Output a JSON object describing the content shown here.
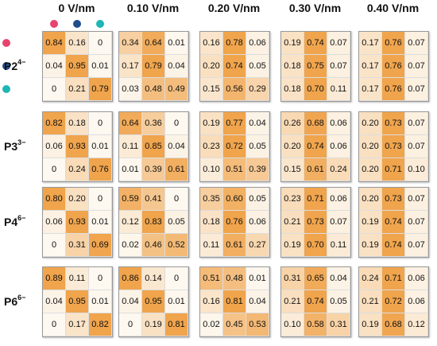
{
  "fields": [
    "0 V/nm",
    "0.10 V/nm",
    "0.20 V/nm",
    "0.30 V/nm",
    "0.40 V/nm"
  ],
  "rows": [
    {
      "label_base": "P2",
      "label_sup": "4−"
    },
    {
      "label_base": "P3",
      "label_sup": "3−"
    },
    {
      "label_base": "P4",
      "label_sup": "6−"
    },
    {
      "label_base": "P6",
      "label_sup": "6−"
    }
  ],
  "legend_dots": [
    {
      "name": "pink-dot",
      "color": "#e8436e"
    },
    {
      "name": "navy-dot",
      "color": "#1f4e8c"
    },
    {
      "name": "teal-dot",
      "color": "#1fb5b5"
    }
  ],
  "scale_colors": {
    "low": "#fdf8f0",
    "high": "#f0a44c"
  },
  "matrices": [
    [
      [
        [
          0.84,
          0.16,
          0
        ],
        [
          0.04,
          0.95,
          0.01
        ],
        [
          0,
          0.21,
          0.79
        ]
      ],
      [
        [
          0.34,
          0.64,
          0.01
        ],
        [
          0.17,
          0.79,
          0.04
        ],
        [
          0.03,
          0.48,
          0.49
        ]
      ],
      [
        [
          0.16,
          0.78,
          0.06
        ],
        [
          0.2,
          0.74,
          0.05
        ],
        [
          0.15,
          0.56,
          0.29
        ]
      ],
      [
        [
          0.19,
          0.74,
          0.07
        ],
        [
          0.18,
          0.75,
          0.07
        ],
        [
          0.18,
          0.7,
          0.11
        ]
      ],
      [
        [
          0.17,
          0.76,
          0.07
        ],
        [
          0.17,
          0.76,
          0.07
        ],
        [
          0.17,
          0.76,
          0.07
        ]
      ]
    ],
    [
      [
        [
          0.82,
          0.18,
          0
        ],
        [
          0.06,
          0.93,
          0.01
        ],
        [
          0,
          0.24,
          0.76
        ]
      ],
      [
        [
          0.64,
          0.36,
          0
        ],
        [
          0.11,
          0.85,
          0.04
        ],
        [
          0.01,
          0.39,
          0.61
        ]
      ],
      [
        [
          0.19,
          0.77,
          0.04
        ],
        [
          0.23,
          0.72,
          0.05
        ],
        [
          0.1,
          0.51,
          0.39
        ]
      ],
      [
        [
          0.26,
          0.68,
          0.06
        ],
        [
          0.2,
          0.74,
          0.06
        ],
        [
          0.15,
          0.61,
          0.24
        ]
      ],
      [
        [
          0.2,
          0.73,
          0.07
        ],
        [
          0.2,
          0.73,
          0.07
        ],
        [
          0.2,
          0.71,
          0.1
        ]
      ]
    ],
    [
      [
        [
          0.8,
          0.2,
          0
        ],
        [
          0.06,
          0.93,
          0.01
        ],
        [
          0,
          0.31,
          0.69
        ]
      ],
      [
        [
          0.59,
          0.41,
          0
        ],
        [
          0.12,
          0.83,
          0.05
        ],
        [
          0.02,
          0.46,
          0.52
        ]
      ],
      [
        [
          0.35,
          0.6,
          0.05
        ],
        [
          0.18,
          0.76,
          0.06
        ],
        [
          0.11,
          0.61,
          0.27
        ]
      ],
      [
        [
          0.23,
          0.71,
          0.06
        ],
        [
          0.21,
          0.73,
          0.07
        ],
        [
          0.19,
          0.7,
          0.11
        ]
      ],
      [
        [
          0.2,
          0.73,
          0.07
        ],
        [
          0.19,
          0.74,
          0.07
        ],
        [
          0.19,
          0.74,
          0.07
        ]
      ]
    ],
    [
      [
        [
          0.89,
          0.11,
          0
        ],
        [
          0.04,
          0.95,
          0.01
        ],
        [
          0,
          0.17,
          0.82
        ]
      ],
      [
        [
          0.86,
          0.14,
          0
        ],
        [
          0.04,
          0.95,
          0.01
        ],
        [
          0,
          0.19,
          0.81
        ]
      ],
      [
        [
          0.51,
          0.48,
          0.01
        ],
        [
          0.16,
          0.81,
          0.04
        ],
        [
          0.02,
          0.45,
          0.53
        ]
      ],
      [
        [
          0.31,
          0.65,
          0.04
        ],
        [
          0.21,
          0.74,
          0.05
        ],
        [
          0.1,
          0.58,
          0.31
        ]
      ],
      [
        [
          0.24,
          0.71,
          0.06
        ],
        [
          0.21,
          0.72,
          0.06
        ],
        [
          0.19,
          0.68,
          0.12
        ]
      ]
    ]
  ]
}
